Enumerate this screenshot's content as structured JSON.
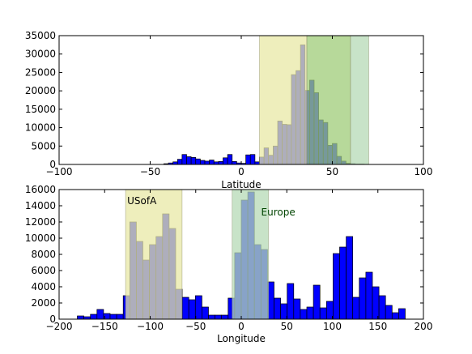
{
  "colors": {
    "bar_fill": "#0000ff",
    "bar_edge": "#000000",
    "usa_band": "#e8e8a6",
    "europe_band": "#b5dab5",
    "overlap_band": "#9fcc78",
    "europe_text": "#004400",
    "usa_text": "#000000"
  },
  "chart_data": [
    {
      "type": "bar",
      "xlabel": "Latitude",
      "ylabel": "",
      "xlim": [
        -100,
        100
      ],
      "ylim": [
        0,
        35000
      ],
      "xticks": [
        -100,
        -50,
        0,
        50,
        100
      ],
      "xtick_labels": [
        "−100",
        "−50",
        "0",
        "50",
        "100"
      ],
      "yticks": [
        0,
        5000,
        10000,
        15000,
        20000,
        25000,
        30000,
        35000
      ],
      "ytick_labels": [
        "0",
        "5000",
        "10000",
        "15000",
        "20000",
        "25000",
        "30000",
        "35000"
      ],
      "bin_width": 2.5,
      "bin_starts": [
        -42.5,
        -40,
        -37.5,
        -35,
        -32.5,
        -30,
        -27.5,
        -25,
        -22.5,
        -20,
        -17.5,
        -15,
        -12.5,
        -10,
        -7.5,
        -5,
        -2.5,
        0,
        2.5,
        5,
        7.5,
        10,
        12.5,
        15,
        17.5,
        20,
        22.5,
        25,
        27.5,
        30,
        32.5,
        35,
        37.5,
        40,
        42.5,
        45,
        47.5,
        50,
        52.5,
        55,
        57.5,
        60,
        62.5,
        65,
        67.5
      ],
      "values": [
        200,
        400,
        700,
        1400,
        2700,
        2100,
        1900,
        1500,
        1100,
        900,
        1200,
        700,
        800,
        1800,
        2700,
        800,
        400,
        300,
        2600,
        2700,
        700,
        2000,
        4500,
        2500,
        5000,
        11800,
        10900,
        10800,
        24400,
        25500,
        32500,
        20100,
        22900,
        19500,
        12100,
        11400,
        5200,
        5700,
        2200,
        900,
        300,
        200,
        100,
        100,
        50
      ],
      "bands": [
        {
          "xmin": 10,
          "xmax": 36,
          "color_key": "usa_band"
        },
        {
          "xmin": 36,
          "xmax": 60,
          "color_key": "overlap_band"
        },
        {
          "xmin": 60,
          "xmax": 70,
          "color_key": "europe_band"
        }
      ],
      "annotations": []
    },
    {
      "type": "bar",
      "xlabel": "Longitude",
      "ylabel": "",
      "xlim": [
        -200,
        200
      ],
      "ylim": [
        0,
        16000
      ],
      "xticks": [
        -200,
        -150,
        -100,
        -50,
        0,
        50,
        100,
        150,
        200
      ],
      "xtick_labels": [
        "−200",
        "−150",
        "−100",
        "−50",
        "0",
        "50",
        "100",
        "150",
        "200"
      ],
      "yticks": [
        0,
        2000,
        4000,
        6000,
        8000,
        10000,
        12000,
        14000,
        16000
      ],
      "ytick_labels": [
        "0",
        "2000",
        "4000",
        "6000",
        "8000",
        "10000",
        "12000",
        "14000",
        "16000"
      ],
      "bin_width": 7.2,
      "bin_starts": [
        -180,
        -172.8,
        -165.6,
        -158.4,
        -151.2,
        -144,
        -136.8,
        -129.6,
        -122.4,
        -115.2,
        -108,
        -100.8,
        -93.6,
        -86.4,
        -79.2,
        -72,
        -64.8,
        -57.6,
        -50.4,
        -43.2,
        -36,
        -28.8,
        -21.6,
        -14.4,
        -7.2,
        0,
        7.2,
        14.4,
        21.6,
        28.8,
        36,
        43.2,
        50.4,
        57.6,
        64.8,
        72,
        79.2,
        86.4,
        93.6,
        100.8,
        108,
        115.2,
        122.4,
        129.6,
        136.8,
        144,
        151.2,
        158.4,
        165.6,
        172.8
      ],
      "values": [
        400,
        300,
        600,
        1200,
        700,
        600,
        600,
        2900,
        12000,
        9600,
        7300,
        9200,
        10200,
        13000,
        11200,
        3700,
        2700,
        2400,
        2900,
        1500,
        500,
        500,
        500,
        2600,
        8200,
        14700,
        15700,
        9200,
        8600,
        4600,
        2600,
        1900,
        4400,
        2500,
        1200,
        1500,
        4200,
        1400,
        2200,
        8100,
        8900,
        10200,
        2700,
        5100,
        5800,
        4000,
        2900,
        1700,
        800,
        1300
      ],
      "bands": [
        {
          "xmin": -127,
          "xmax": -65,
          "color_key": "usa_band"
        },
        {
          "xmin": -10,
          "xmax": 30,
          "color_key": "europe_band"
        }
      ],
      "annotations": [
        {
          "text": "USofA",
          "x": -127,
          "y": 14200,
          "color_key": "usa_text"
        },
        {
          "text": "Europe",
          "x": 20,
          "y": 12800,
          "color_key": "europe_text"
        }
      ]
    }
  ]
}
